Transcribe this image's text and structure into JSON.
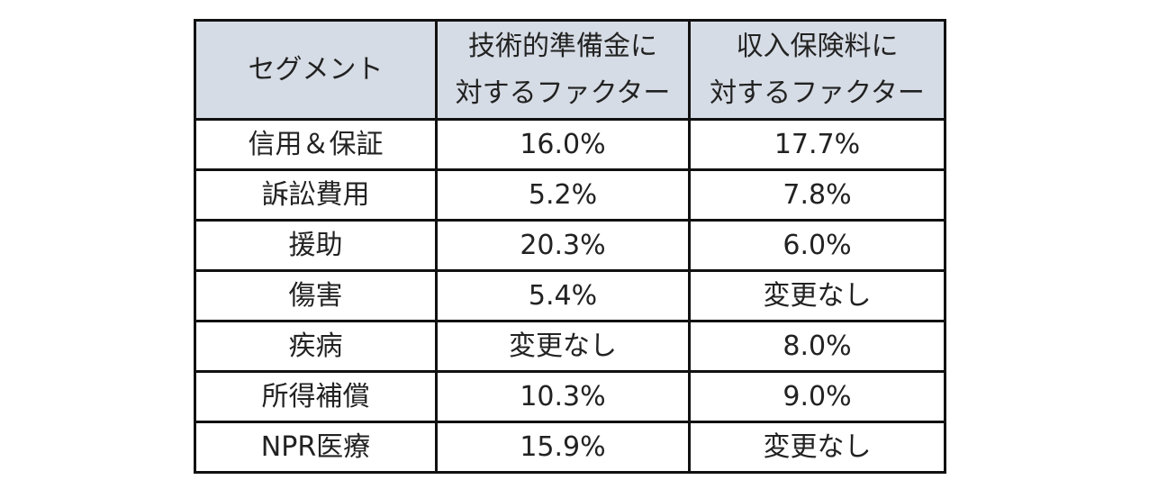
{
  "table": {
    "headers": {
      "segment": "セグメント",
      "technical_line1": "技術的準備金に",
      "technical_line2": "対するファクター",
      "income_line1": "収入保険料に",
      "income_line2": "対するファクター"
    },
    "rows": [
      {
        "segment": "信用＆保証",
        "technical": "16.0%",
        "income": "17.7%"
      },
      {
        "segment": "訴訟費用",
        "technical": "5.2%",
        "income": "7.8%"
      },
      {
        "segment": "援助",
        "technical": "20.3%",
        "income": "6.0%"
      },
      {
        "segment": "傷害",
        "technical": "5.4%",
        "income": "変更なし"
      },
      {
        "segment": "疾病",
        "technical": "変更なし",
        "income": "8.0%"
      },
      {
        "segment": "所得補償",
        "technical": "10.3%",
        "income": "9.0%"
      },
      {
        "segment": "NPR医療",
        "technical": "15.9%",
        "income": "変更なし"
      }
    ]
  },
  "colors": {
    "header_background": "#d6dce5",
    "border": "#111111"
  }
}
